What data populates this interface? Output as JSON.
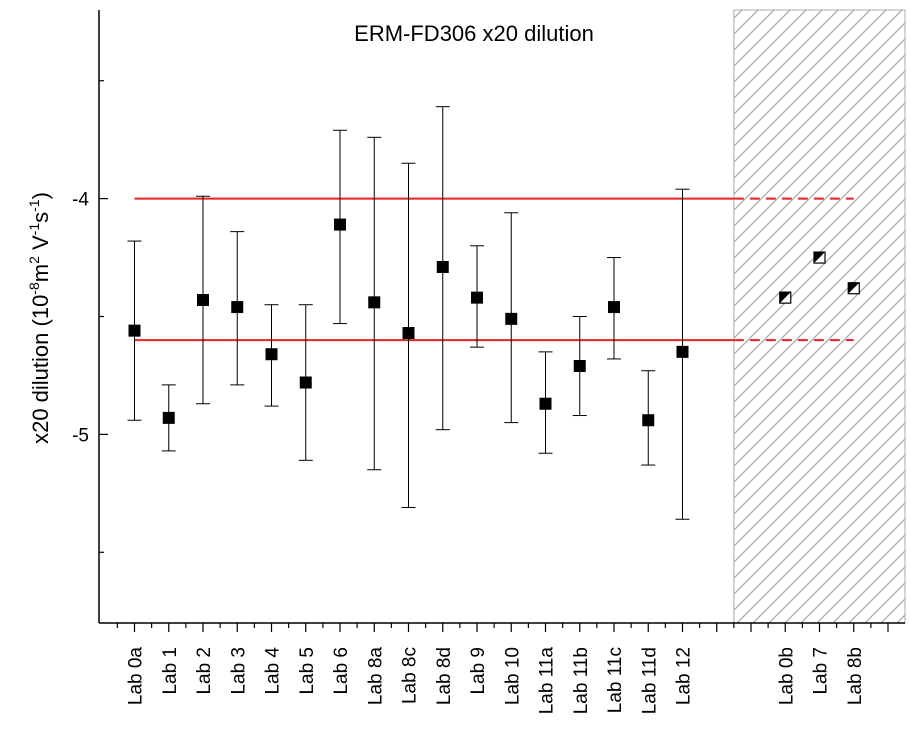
{
  "chart_data": {
    "type": "scatter",
    "title": "ERM-FD306 x20 dilution",
    "ylabel": {
      "main": "x20 dilution (10",
      "exp1": "-8",
      "mid1": "m",
      "exp2": "2",
      "mid2": " V",
      "exp3": "-1",
      "mid3": "s",
      "exp4": "-1",
      "end": ")"
    },
    "ylim": [
      -5.8,
      -3.2
    ],
    "yticks": [
      {
        "value": -4,
        "label": "-4"
      },
      {
        "value": -5,
        "label": "-5"
      }
    ],
    "categories": [
      "Lab 0a",
      "Lab 1",
      "Lab 2",
      "Lab 3",
      "Lab 4",
      "Lab 5",
      "Lab 6",
      "Lab 8a",
      "Lab 8c",
      "Lab 8d",
      "Lab 9",
      "Lab 10",
      "Lab 11a",
      "Lab 11b",
      "Lab 11c",
      "Lab 11d",
      "Lab 12",
      "",
      "",
      "Lab 0b",
      "Lab 7",
      "Lab 8b",
      ""
    ],
    "series": [
      {
        "marker": "filled-square",
        "points": [
          {
            "category": "Lab 0a",
            "y": -4.56,
            "low": -4.94,
            "high": -4.18
          },
          {
            "category": "Lab 1",
            "y": -4.93,
            "low": -5.07,
            "high": -4.79
          },
          {
            "category": "Lab 2",
            "y": -4.43,
            "low": -4.87,
            "high": -3.99
          },
          {
            "category": "Lab 3",
            "y": -4.46,
            "low": -4.79,
            "high": -4.14
          },
          {
            "category": "Lab 4",
            "y": -4.66,
            "low": -4.88,
            "high": -4.45
          },
          {
            "category": "Lab 5",
            "y": -4.78,
            "low": -5.11,
            "high": -4.45
          },
          {
            "category": "Lab 6",
            "y": -4.11,
            "low": -4.53,
            "high": -3.71
          },
          {
            "category": "Lab 8a",
            "y": -4.44,
            "low": -5.15,
            "high": -3.74
          },
          {
            "category": "Lab 8c",
            "y": -4.57,
            "low": -5.31,
            "high": -3.85
          },
          {
            "category": "Lab 8d",
            "y": -4.29,
            "low": -4.98,
            "high": -3.61
          },
          {
            "category": "Lab 9",
            "y": -4.42,
            "low": -4.63,
            "high": -4.2
          },
          {
            "category": "Lab 10",
            "y": -4.51,
            "low": -4.95,
            "high": -4.06
          },
          {
            "category": "Lab 11a",
            "y": -4.87,
            "low": -5.08,
            "high": -4.65
          },
          {
            "category": "Lab 11b",
            "y": -4.71,
            "low": -4.92,
            "high": -4.5
          },
          {
            "category": "Lab 11c",
            "y": -4.46,
            "low": -4.68,
            "high": -4.25
          },
          {
            "category": "Lab 11d",
            "y": -4.94,
            "low": -5.13,
            "high": -4.73
          },
          {
            "category": "Lab 12",
            "y": -4.65,
            "low": -5.36,
            "high": -3.96
          }
        ]
      },
      {
        "marker": "half-filled-square",
        "points": [
          {
            "category": "Lab 0b",
            "y": -4.42
          },
          {
            "category": "Lab 7",
            "y": -4.25
          },
          {
            "category": "Lab 8b",
            "y": -4.38
          }
        ]
      }
    ],
    "reference_lines": [
      {
        "y": -4.0,
        "color": "#e8231e"
      },
      {
        "y": -4.6,
        "color": "#e8231e"
      }
    ],
    "hatched_region": {
      "from_category_index": 18,
      "to_category_index": 22,
      "color": "#a9a9a9"
    }
  }
}
